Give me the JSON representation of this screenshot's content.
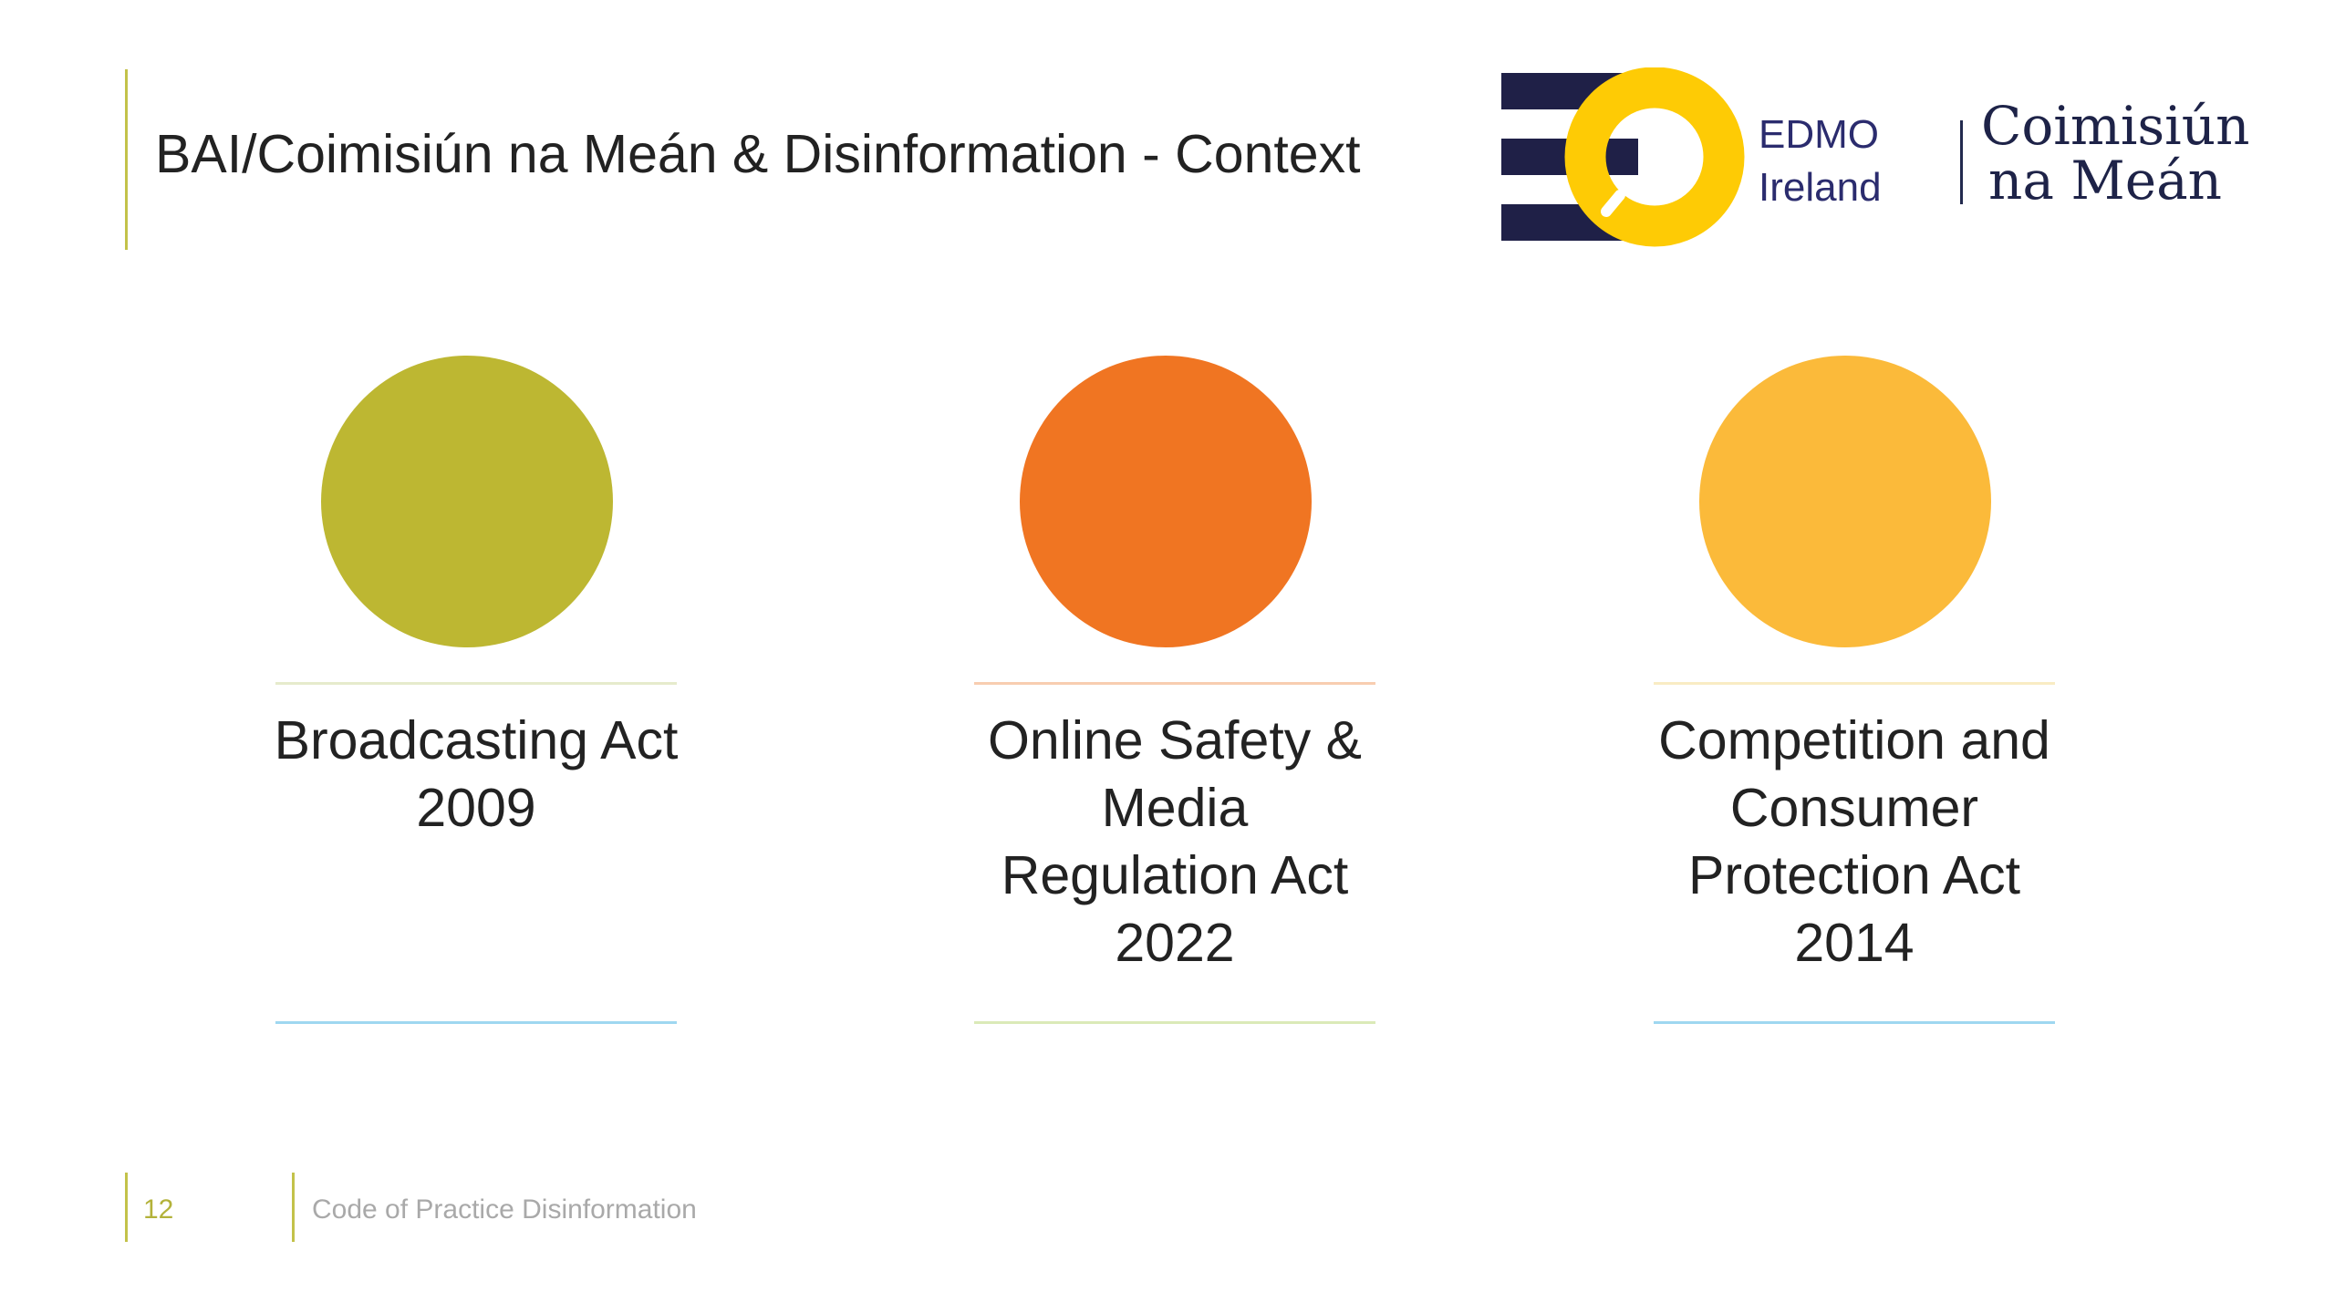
{
  "slide": {
    "title": "BAI/Coimisiún na Meán & Disinformation - Context"
  },
  "logos": {
    "edmo": {
      "line1": "EDMO",
      "line2": "Ireland",
      "navy": "#1f2047",
      "yellow": "#fecb05",
      "text_color": "#2b2c6e"
    },
    "cnam": {
      "line1": "Coimisiún",
      "line2": "na Meán"
    }
  },
  "columns": [
    {
      "lines": [
        "Broadcasting Act",
        "2009"
      ],
      "circle_color": "#bdb732",
      "rule_top_color": "#e6ebcc",
      "rule_bottom_color": "#9fd7f0"
    },
    {
      "lines": [
        "Online Safety &",
        "Media",
        "Regulation Act",
        "2022"
      ],
      "circle_color": "#f07522",
      "rule_top_color": "#f8cdb0",
      "rule_bottom_color": "#dbeab8"
    },
    {
      "lines": [
        "Competition and",
        "Consumer",
        "Protection Act",
        "2014"
      ],
      "circle_color": "#fbba3a",
      "rule_top_color": "#f9ecc4",
      "rule_bottom_color": "#9fd7f0"
    }
  ],
  "footer": {
    "page_number": "12",
    "text": "Code of Practice Disinformation"
  }
}
